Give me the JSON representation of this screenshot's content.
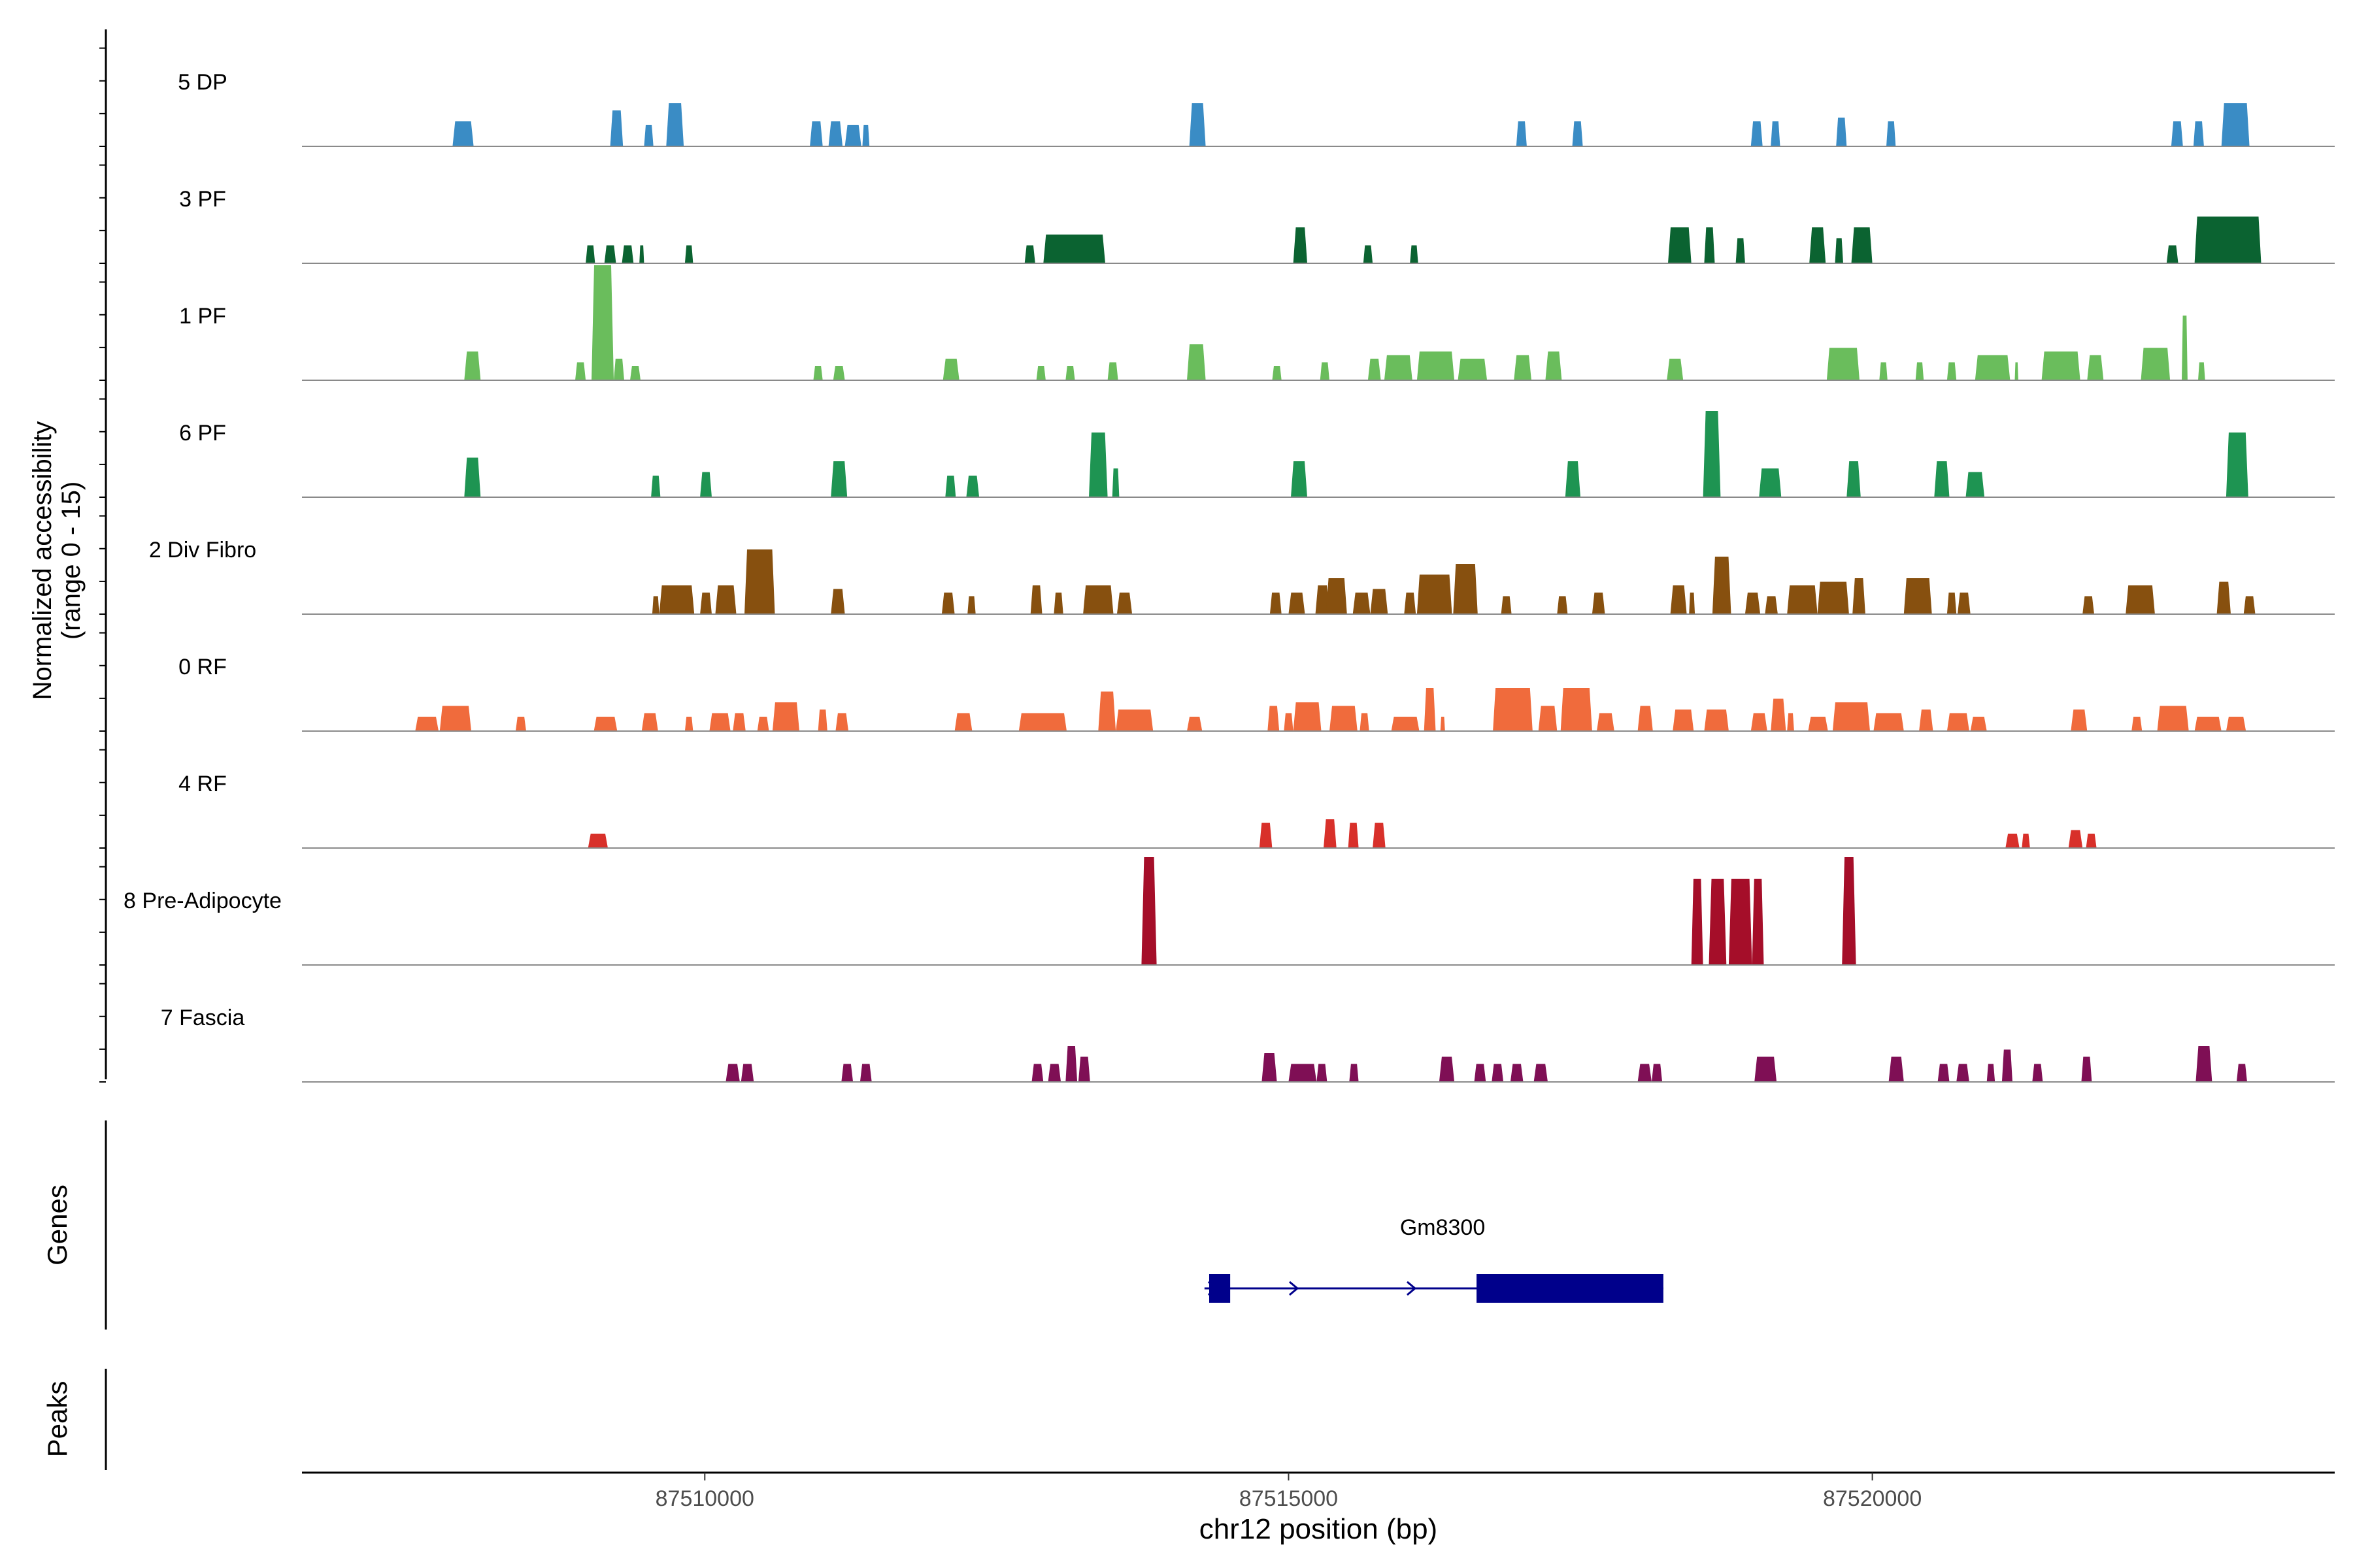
{
  "chart_data": {
    "type": "coverage",
    "title": "",
    "ylabel_line1": "Normalized accessibility",
    "ylabel_line2": "(range 0 - 15)",
    "xlabel": "chr12 position (bp)",
    "y_range": [
      0,
      15
    ],
    "x_range": [
      87506550,
      87523960
    ],
    "x_ticks": [
      87510000,
      87515000,
      87520000
    ],
    "x_tick_labels": [
      "87510000",
      "87515000",
      "87520000"
    ],
    "genes_label": "Genes",
    "peaks_label": "Peaks",
    "tracks": [
      {
        "name": "5 DP",
        "color": "#3A8CC5",
        "peaks": [
          [
            87507840,
            87508020,
            3.5
          ],
          [
            87509190,
            87509300,
            5
          ],
          [
            87509480,
            87509560,
            3
          ],
          [
            87509670,
            87509820,
            6
          ],
          [
            87510900,
            87511010,
            3.5
          ],
          [
            87511060,
            87511180,
            3.5
          ],
          [
            87511200,
            87511340,
            3
          ],
          [
            87511350,
            87511410,
            3
          ],
          [
            87514150,
            87514290,
            6
          ],
          [
            87516950,
            87517040,
            3.5
          ],
          [
            87517430,
            87517520,
            3.5
          ],
          [
            87518960,
            87519060,
            3.5
          ],
          [
            87519130,
            87519210,
            3.5
          ],
          [
            87519690,
            87519780,
            4
          ],
          [
            87520120,
            87520200,
            3.5
          ],
          [
            87522560,
            87522660,
            3.5
          ],
          [
            87522750,
            87522840,
            3.5
          ],
          [
            87522990,
            87523230,
            6
          ]
        ]
      },
      {
        "name": "3 PF",
        "color": "#0B6331",
        "peaks": [
          [
            87508980,
            87509060,
            2.5
          ],
          [
            87509140,
            87509240,
            2.5
          ],
          [
            87509290,
            87509390,
            2.5
          ],
          [
            87509440,
            87509480,
            2.5
          ],
          [
            87509830,
            87509900,
            2.5
          ],
          [
            87512740,
            87512830,
            2.5
          ],
          [
            87512900,
            87513430,
            4
          ],
          [
            87515040,
            87515160,
            5
          ],
          [
            87515640,
            87515720,
            2.5
          ],
          [
            87516040,
            87516110,
            2.5
          ],
          [
            87518250,
            87518450,
            5
          ],
          [
            87518560,
            87518650,
            5
          ],
          [
            87518830,
            87518910,
            3.5
          ],
          [
            87519460,
            87519600,
            5
          ],
          [
            87519680,
            87519750,
            3.5
          ],
          [
            87519820,
            87520000,
            5
          ],
          [
            87522520,
            87522620,
            2.5
          ],
          [
            87522760,
            87523330,
            6.5
          ]
        ]
      },
      {
        "name": "1 PF",
        "color": "#6ABD5C",
        "peaks": [
          [
            87507940,
            87508080,
            4
          ],
          [
            87508890,
            87508980,
            2.5
          ],
          [
            87509030,
            87509220,
            16
          ],
          [
            87509220,
            87509310,
            3
          ],
          [
            87509360,
            87509450,
            2
          ],
          [
            87510930,
            87511010,
            2
          ],
          [
            87511100,
            87511200,
            2
          ],
          [
            87512040,
            87512180,
            3
          ],
          [
            87512840,
            87512920,
            2
          ],
          [
            87513090,
            87513170,
            2
          ],
          [
            87513450,
            87513540,
            2.5
          ],
          [
            87514130,
            87514290,
            5
          ],
          [
            87514860,
            87514940,
            2
          ],
          [
            87515270,
            87515350,
            2.5
          ],
          [
            87515680,
            87515790,
            3
          ],
          [
            87515820,
            87516060,
            3.5
          ],
          [
            87516100,
            87516420,
            4
          ],
          [
            87516450,
            87516700,
            3
          ],
          [
            87516930,
            87517080,
            3.5
          ],
          [
            87517200,
            87517340,
            4
          ],
          [
            87518240,
            87518380,
            3
          ],
          [
            87519610,
            87519890,
            4.5
          ],
          [
            87520060,
            87520130,
            2.5
          ],
          [
            87520370,
            87520440,
            2.5
          ],
          [
            87520640,
            87520720,
            2.5
          ],
          [
            87520880,
            87521180,
            3.5
          ],
          [
            87521220,
            87521250,
            2.5
          ],
          [
            87521450,
            87521780,
            4
          ],
          [
            87521840,
            87521980,
            3.5
          ],
          [
            87522300,
            87522550,
            4.5
          ],
          [
            87522650,
            87522700,
            9
          ],
          [
            87522790,
            87522850,
            2.5
          ]
        ]
      },
      {
        "name": "6 PF",
        "color": "#1E9452",
        "peaks": [
          [
            87507940,
            87508080,
            5.5
          ],
          [
            87509540,
            87509620,
            3
          ],
          [
            87509960,
            87510060,
            3.5
          ],
          [
            87511080,
            87511220,
            5
          ],
          [
            87512060,
            87512150,
            3
          ],
          [
            87512240,
            87512350,
            3
          ],
          [
            87513290,
            87513450,
            9
          ],
          [
            87513490,
            87513550,
            4
          ],
          [
            87515020,
            87515160,
            5
          ],
          [
            87517370,
            87517500,
            5
          ],
          [
            87518550,
            87518700,
            12
          ],
          [
            87519030,
            87519220,
            4
          ],
          [
            87519780,
            87519900,
            5
          ],
          [
            87520530,
            87520660,
            5
          ],
          [
            87520800,
            87520960,
            3.5
          ],
          [
            87523030,
            87523220,
            9
          ]
        ]
      },
      {
        "name": "2 Div Fibro",
        "color": "#87500F",
        "peaks": [
          [
            87509550,
            87509610,
            2.5
          ],
          [
            87509610,
            87509910,
            4
          ],
          [
            87509960,
            87510060,
            3
          ],
          [
            87510090,
            87510270,
            4
          ],
          [
            87510340,
            87510600,
            9
          ],
          [
            87511080,
            87511200,
            3.5
          ],
          [
            87512030,
            87512140,
            3
          ],
          [
            87512250,
            87512320,
            2.5
          ],
          [
            87512790,
            87512890,
            4
          ],
          [
            87512990,
            87513070,
            3
          ],
          [
            87513240,
            87513500,
            4
          ],
          [
            87513530,
            87513660,
            3
          ],
          [
            87514840,
            87514940,
            3
          ],
          [
            87515000,
            87515140,
            3
          ],
          [
            87515230,
            87515350,
            4
          ],
          [
            87515320,
            87515500,
            5
          ],
          [
            87515550,
            87515700,
            3
          ],
          [
            87515700,
            87515850,
            3.5
          ],
          [
            87515990,
            87516090,
            3
          ],
          [
            87516100,
            87516400,
            5.5
          ],
          [
            87516410,
            87516620,
            7
          ],
          [
            87516820,
            87516910,
            2.5
          ],
          [
            87517300,
            87517390,
            2.5
          ],
          [
            87517600,
            87517710,
            3
          ],
          [
            87518270,
            87518410,
            4
          ],
          [
            87518430,
            87518480,
            3
          ],
          [
            87518630,
            87518790,
            8
          ],
          [
            87518910,
            87519040,
            3
          ],
          [
            87519080,
            87519190,
            2.5
          ],
          [
            87519270,
            87519530,
            4
          ],
          [
            87519530,
            87519800,
            4.5
          ],
          [
            87519830,
            87519940,
            5
          ],
          [
            87520270,
            87520510,
            5
          ],
          [
            87520640,
            87520720,
            3
          ],
          [
            87520730,
            87520840,
            3
          ],
          [
            87521800,
            87521900,
            2.5
          ],
          [
            87522170,
            87522420,
            4
          ],
          [
            87522950,
            87523070,
            4.5
          ],
          [
            87523180,
            87523280,
            2.5
          ]
        ]
      },
      {
        "name": "0 RF",
        "color": "#F06B3C",
        "peaks": [
          [
            87507520,
            87507720,
            2
          ],
          [
            87507730,
            87508000,
            3.5
          ],
          [
            87508380,
            87508470,
            2
          ],
          [
            87509050,
            87509250,
            2
          ],
          [
            87509460,
            87509600,
            2.5
          ],
          [
            87509830,
            87509900,
            2
          ],
          [
            87510040,
            87510220,
            2.5
          ],
          [
            87510240,
            87510350,
            2.5
          ],
          [
            87510450,
            87510550,
            2
          ],
          [
            87510580,
            87510810,
            4
          ],
          [
            87510970,
            87511050,
            3
          ],
          [
            87511120,
            87511230,
            2.5
          ],
          [
            87512140,
            87512290,
            2.5
          ],
          [
            87512690,
            87513100,
            2.5
          ],
          [
            87513370,
            87513520,
            5.5
          ],
          [
            87513520,
            87513840,
            3
          ],
          [
            87514130,
            87514260,
            2
          ],
          [
            87514820,
            87514920,
            3.5
          ],
          [
            87514960,
            87515040,
            2.5
          ],
          [
            87515040,
            87515280,
            4
          ],
          [
            87515350,
            87515590,
            3.5
          ],
          [
            87515610,
            87515690,
            2.5
          ],
          [
            87515880,
            87516120,
            2
          ],
          [
            87516160,
            87516260,
            6
          ],
          [
            87516300,
            87516340,
            2
          ],
          [
            87516750,
            87517090,
            6
          ],
          [
            87517140,
            87517300,
            3.5
          ],
          [
            87517330,
            87517600,
            6
          ],
          [
            87517640,
            87517790,
            2.5
          ],
          [
            87517990,
            87518120,
            3.5
          ],
          [
            87518290,
            87518470,
            3
          ],
          [
            87518560,
            87518770,
            3
          ],
          [
            87518960,
            87519100,
            2.5
          ],
          [
            87519130,
            87519260,
            4.5
          ],
          [
            87519270,
            87519330,
            2.5
          ],
          [
            87519450,
            87519620,
            2
          ],
          [
            87519660,
            87519980,
            4
          ],
          [
            87520010,
            87520270,
            2.5
          ],
          [
            87520400,
            87520520,
            3
          ],
          [
            87520640,
            87520830,
            2.5
          ],
          [
            87520840,
            87520980,
            2
          ],
          [
            87521700,
            87521840,
            3
          ],
          [
            87522220,
            87522310,
            2
          ],
          [
            87522440,
            87522710,
            3.5
          ],
          [
            87522760,
            87522990,
            2
          ],
          [
            87523030,
            87523200,
            2
          ]
        ]
      },
      {
        "name": "4 RF",
        "color": "#D8302A",
        "peaks": [
          [
            87509000,
            87509170,
            2
          ],
          [
            87514750,
            87514860,
            3.5
          ],
          [
            87515300,
            87515410,
            4
          ],
          [
            87515510,
            87515600,
            3.5
          ],
          [
            87515720,
            87515830,
            3.5
          ],
          [
            87521140,
            87521260,
            2
          ],
          [
            87521280,
            87521350,
            2
          ],
          [
            87521680,
            87521800,
            2.5
          ],
          [
            87521830,
            87521920,
            2
          ]
        ]
      },
      {
        "name": "8 Pre-Adipocyte",
        "color": "#A50E29",
        "peaks": [
          [
            87513740,
            87513870,
            15
          ],
          [
            87518450,
            87518550,
            12
          ],
          [
            87518600,
            87518750,
            12
          ],
          [
            87518770,
            87518970,
            12
          ],
          [
            87518970,
            87519070,
            12
          ],
          [
            87519740,
            87519860,
            15
          ]
        ]
      },
      {
        "name": "7 Fascia",
        "color": "#7F0F55",
        "peaks": [
          [
            87510180,
            87510300,
            2.5
          ],
          [
            87510310,
            87510420,
            2.5
          ],
          [
            87511170,
            87511270,
            2.5
          ],
          [
            87511330,
            87511430,
            2.5
          ],
          [
            87512800,
            87512900,
            2.5
          ],
          [
            87512940,
            87513050,
            2.5
          ],
          [
            87513090,
            87513190,
            5
          ],
          [
            87513200,
            87513300,
            3.5
          ],
          [
            87514770,
            87514900,
            4
          ],
          [
            87515000,
            87515240,
            2.5
          ],
          [
            87515240,
            87515330,
            2.5
          ],
          [
            87515520,
            87515600,
            2.5
          ],
          [
            87516290,
            87516420,
            3.5
          ],
          [
            87516590,
            87516690,
            2.5
          ],
          [
            87516740,
            87516840,
            2.5
          ],
          [
            87516900,
            87517010,
            2.5
          ],
          [
            87517100,
            87517220,
            2.5
          ],
          [
            87517990,
            87518110,
            2.5
          ],
          [
            87518110,
            87518200,
            2.5
          ],
          [
            87518990,
            87519180,
            3.5
          ],
          [
            87520140,
            87520270,
            3.5
          ],
          [
            87520560,
            87520660,
            2.5
          ],
          [
            87520720,
            87520830,
            2.5
          ],
          [
            87520980,
            87521050,
            2.5
          ],
          [
            87521110,
            87521200,
            4.5
          ],
          [
            87521370,
            87521460,
            2.5
          ],
          [
            87521790,
            87521880,
            3.5
          ],
          [
            87522770,
            87522910,
            5
          ],
          [
            87523120,
            87523210,
            2.5
          ]
        ]
      }
    ],
    "genes": [
      {
        "name": "Gm8300",
        "start": 87514280,
        "end": 87518210,
        "strand": "+",
        "color": "#00008B",
        "exons": [
          [
            87514320,
            87514500
          ],
          [
            87516610,
            87518210
          ]
        ]
      }
    ]
  }
}
